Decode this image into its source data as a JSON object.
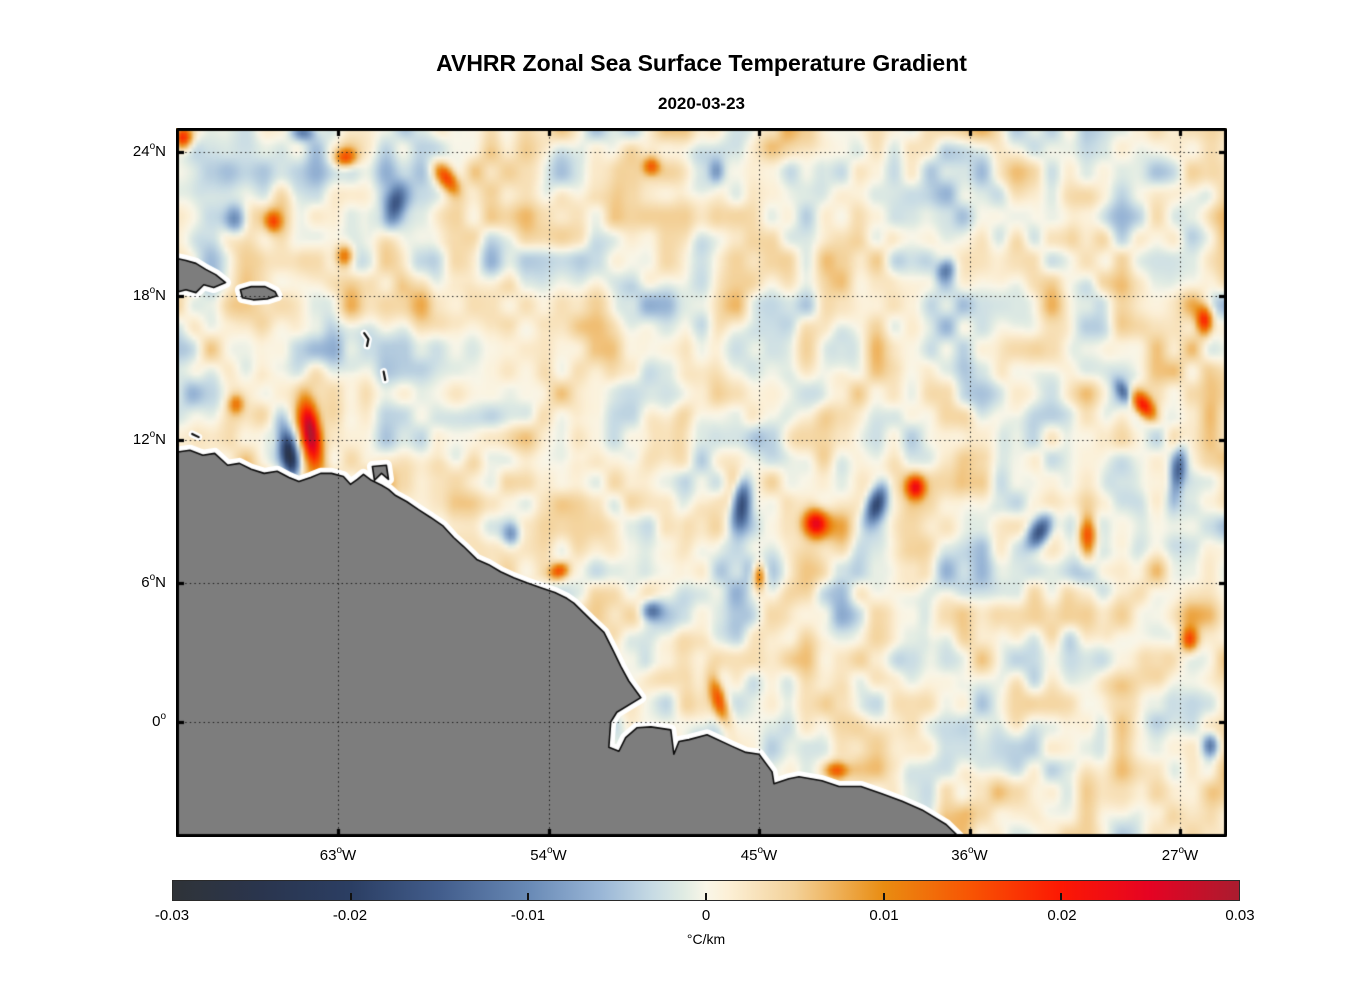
{
  "title": "AVHRR Zonal Sea Surface Temperature Gradient",
  "subtitle": "2020-03-23",
  "chart_data": {
    "type": "heatmap",
    "title": "AVHRR Zonal Sea Surface Temperature Gradient",
    "subtitle": "2020-03-23",
    "variable": "zonal sea surface temperature gradient",
    "units": "°C/km",
    "lon_range": [
      -70,
      -25
    ],
    "lat_range": [
      -5,
      25
    ],
    "grid": true,
    "lon_ticks": [
      {
        "lon": -63,
        "deg": "63",
        "hemi": "W"
      },
      {
        "lon": -54,
        "deg": "54",
        "hemi": "W"
      },
      {
        "lon": -45,
        "deg": "45",
        "hemi": "W"
      },
      {
        "lon": -36,
        "deg": "36",
        "hemi": "W"
      },
      {
        "lon": -27,
        "deg": "27",
        "hemi": "W"
      }
    ],
    "lat_ticks": [
      {
        "lat": 24,
        "deg": "24",
        "hemi": "N"
      },
      {
        "lat": 18,
        "deg": "18",
        "hemi": "N"
      },
      {
        "lat": 12,
        "deg": "12",
        "hemi": "N"
      },
      {
        "lat": 6,
        "deg": "6",
        "hemi": "N"
      },
      {
        "lat": 0,
        "deg": "0",
        "hemi": ""
      }
    ],
    "colorbar": {
      "orientation": "horizontal",
      "min": -0.03,
      "max": 0.03,
      "ticks": [
        -0.03,
        -0.02,
        -0.01,
        0,
        0.01,
        0.02,
        0.03
      ],
      "tick_labels": [
        "-0.03",
        "-0.02",
        "-0.01",
        "0",
        "0.01",
        "0.02",
        "0.03"
      ],
      "unit": "°C/km",
      "stops": [
        {
          "t": 0.0,
          "c": "#2f3338"
        },
        {
          "t": 0.083,
          "c": "#2a354e"
        },
        {
          "t": 0.167,
          "c": "#2b3e63"
        },
        {
          "t": 0.25,
          "c": "#425d8c"
        },
        {
          "t": 0.333,
          "c": "#6889b5"
        },
        {
          "t": 0.4,
          "c": "#98b5d6"
        },
        {
          "t": 0.45,
          "c": "#c7dbe4"
        },
        {
          "t": 0.48,
          "c": "#e1ece3"
        },
        {
          "t": 0.5,
          "c": "#f9f6e8"
        },
        {
          "t": 0.52,
          "c": "#fcf0d7"
        },
        {
          "t": 0.583,
          "c": "#f3d198"
        },
        {
          "t": 0.667,
          "c": "#e98c11"
        },
        {
          "t": 0.75,
          "c": "#f85303"
        },
        {
          "t": 0.833,
          "c": "#fc1803"
        },
        {
          "t": 0.917,
          "c": "#e50323"
        },
        {
          "t": 1.0,
          "c": "#aa1c2f"
        }
      ]
    },
    "land_color": "#7d7d7d",
    "coast_color": "#0a0a0a",
    "nan_halo_color": "#ffffff",
    "background_amplitude": 0.0072,
    "features": {
      "columns": [
        "lon",
        "lat",
        "rx_px",
        "ry_px",
        "rot_deg",
        "value"
      ],
      "rows": [
        [
          -69.7,
          24.6,
          9,
          11,
          0,
          0.02
        ],
        [
          -62.7,
          23.75,
          11,
          9,
          0,
          0.014
        ],
        [
          -67.35,
          21.2,
          11,
          16,
          10,
          -0.011
        ],
        [
          -65.8,
          21.1,
          8,
          10,
          0,
          0.012
        ],
        [
          -60.6,
          21.7,
          10,
          21,
          15,
          -0.014
        ],
        [
          -58.35,
          22.9,
          9,
          17,
          -35,
          0.016
        ],
        [
          -62.7,
          19.65,
          9,
          12,
          0,
          0.015
        ],
        [
          -64.45,
          24.8,
          12,
          8,
          0,
          -0.009
        ],
        [
          -25.95,
          17.0,
          8,
          14,
          0,
          0.018
        ],
        [
          -28.55,
          13.4,
          9,
          17,
          -40,
          0.02
        ],
        [
          -27.1,
          10.6,
          8,
          25,
          8,
          -0.017
        ],
        [
          -64.2,
          12.3,
          10,
          29,
          -8,
          0.03
        ],
        [
          -65.1,
          11.35,
          8,
          25,
          -12,
          -0.024
        ],
        [
          -45.75,
          9.35,
          9,
          25,
          5,
          -0.021
        ],
        [
          -42.6,
          8.5,
          12,
          14,
          0,
          0.022
        ],
        [
          -39.95,
          9.35,
          9,
          21,
          20,
          -0.016
        ],
        [
          -38.3,
          10.0,
          9,
          11,
          0,
          0.019
        ],
        [
          -45.0,
          6.3,
          7,
          14,
          0,
          0.017
        ],
        [
          -33.0,
          8.15,
          10,
          19,
          30,
          -0.018
        ],
        [
          -30.95,
          7.85,
          9,
          23,
          0,
          0.019
        ],
        [
          -46.7,
          0.9,
          8,
          25,
          -15,
          0.017
        ],
        [
          -49.6,
          4.8,
          10,
          10,
          0,
          -0.012
        ],
        [
          -53.55,
          6.5,
          10,
          8,
          -30,
          0.014
        ],
        [
          -41.65,
          -2.1,
          12,
          9,
          0,
          0.015
        ],
        [
          -26.6,
          3.55,
          9,
          12,
          0,
          0.016
        ],
        [
          -49.6,
          23.4,
          8,
          9,
          0,
          0.012
        ],
        [
          -46.8,
          23.2,
          8,
          12,
          0,
          -0.008
        ],
        [
          -37.0,
          19.1,
          9,
          12,
          20,
          -0.012
        ],
        [
          -29.4,
          14.0,
          6,
          12,
          -30,
          -0.01
        ],
        [
          -25.7,
          -1.0,
          8,
          12,
          0,
          -0.012
        ],
        [
          -67.4,
          13.5,
          8,
          10,
          0,
          0.01
        ],
        [
          -55.6,
          8.0,
          9,
          12,
          0,
          -0.009
        ]
      ]
    },
    "land": {
      "south_america": [
        [
          -70.6,
          11.4
        ],
        [
          -69.4,
          11.57
        ],
        [
          -68.84,
          11.36
        ],
        [
          -68.33,
          11.44
        ],
        [
          -67.77,
          10.94
        ],
        [
          -67.26,
          11.02
        ],
        [
          -66.75,
          10.77
        ],
        [
          -66.19,
          10.6
        ],
        [
          -65.63,
          10.69
        ],
        [
          -65.12,
          10.43
        ],
        [
          -64.69,
          10.26
        ],
        [
          -64.18,
          10.43
        ],
        [
          -63.75,
          10.6
        ],
        [
          -63.28,
          10.6
        ],
        [
          -62.77,
          10.47
        ],
        [
          -62.47,
          10.14
        ],
        [
          -62.17,
          10.35
        ],
        [
          -61.91,
          10.56
        ],
        [
          -61.57,
          10.31
        ],
        [
          -61.14,
          10.1
        ],
        [
          -60.84,
          9.93
        ],
        [
          -60.54,
          9.67
        ],
        [
          -60.07,
          9.42
        ],
        [
          -59.56,
          9.08
        ],
        [
          -59.04,
          8.75
        ],
        [
          -58.53,
          8.41
        ],
        [
          -58.06,
          7.91
        ],
        [
          -57.63,
          7.53
        ],
        [
          -57.07,
          6.99
        ],
        [
          -56.56,
          6.77
        ],
        [
          -56.05,
          6.47
        ],
        [
          -55.49,
          6.22
        ],
        [
          -54.93,
          6.01
        ],
        [
          -54.33,
          5.8
        ],
        [
          -53.73,
          5.59
        ],
        [
          -53.22,
          5.34
        ],
        [
          -52.92,
          5.13
        ],
        [
          -52.19,
          4.41
        ],
        [
          -51.63,
          3.87
        ],
        [
          -51.21,
          3.03
        ],
        [
          -50.91,
          2.4
        ],
        [
          -50.57,
          1.77
        ],
        [
          -50.05,
          1.05
        ],
        [
          -51.08,
          0.42
        ],
        [
          -51.34,
          0.0
        ],
        [
          -51.42,
          -1.09
        ],
        [
          -50.99,
          -1.26
        ],
        [
          -50.7,
          -0.67
        ],
        [
          -50.22,
          -0.25
        ],
        [
          -49.62,
          -0.21
        ],
        [
          -48.77,
          -0.34
        ],
        [
          -48.64,
          -1.39
        ],
        [
          -48.42,
          -0.84
        ],
        [
          -47.99,
          -0.76
        ],
        [
          -47.22,
          -0.55
        ],
        [
          -46.15,
          -1.05
        ],
        [
          -45.56,
          -1.31
        ],
        [
          -45.0,
          -1.39
        ],
        [
          -44.44,
          -2.15
        ],
        [
          -44.36,
          -2.66
        ],
        [
          -43.72,
          -2.45
        ],
        [
          -43.29,
          -2.36
        ],
        [
          -42.31,
          -2.53
        ],
        [
          -41.58,
          -2.78
        ],
        [
          -40.64,
          -2.78
        ],
        [
          -39.78,
          -3.08
        ],
        [
          -38.88,
          -3.42
        ],
        [
          -38.03,
          -3.79
        ],
        [
          -37.0,
          -4.42
        ],
        [
          -36.3,
          -5.1
        ],
        [
          -35.5,
          -6.5
        ],
        [
          -71.0,
          -6.5
        ]
      ],
      "hispaniola_east": [
        [
          -70.6,
          19.7
        ],
        [
          -69.57,
          19.48
        ],
        [
          -69.14,
          19.36
        ],
        [
          -68.72,
          19.11
        ],
        [
          -68.29,
          18.89
        ],
        [
          -67.86,
          18.56
        ],
        [
          -68.37,
          18.35
        ],
        [
          -68.8,
          18.47
        ],
        [
          -69.14,
          18.14
        ],
        [
          -69.57,
          18.26
        ],
        [
          -70.6,
          18.0
        ]
      ],
      "puerto_rico": [
        [
          -67.22,
          18.26
        ],
        [
          -66.75,
          18.39
        ],
        [
          -66.15,
          18.39
        ],
        [
          -65.72,
          18.18
        ],
        [
          -65.63,
          18.01
        ],
        [
          -66.06,
          17.88
        ],
        [
          -66.66,
          17.84
        ],
        [
          -67.13,
          17.93
        ]
      ],
      "trinidad": [
        [
          -61.53,
          10.89
        ],
        [
          -60.93,
          10.94
        ],
        [
          -60.84,
          10.35
        ],
        [
          -61.14,
          10.6
        ],
        [
          -61.44,
          10.31
        ]
      ]
    },
    "island_marks": [
      [
        [
          -61.88,
          16.45
        ],
        [
          -61.7,
          16.2
        ],
        [
          -61.76,
          15.92
        ]
      ],
      [
        [
          -61.05,
          14.85
        ],
        [
          -60.98,
          14.5
        ]
      ],
      [
        [
          -69.3,
          12.25
        ],
        [
          -69.02,
          12.12
        ]
      ]
    ]
  }
}
